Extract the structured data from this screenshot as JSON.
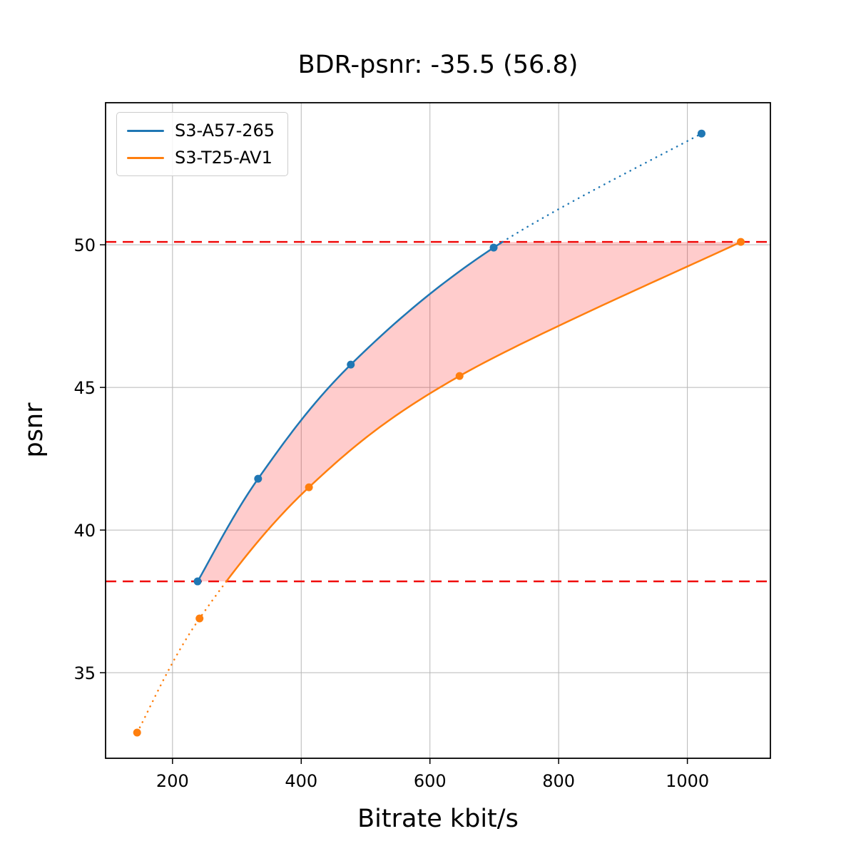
{
  "title": "BDR-psnr: -35.5 (56.8)",
  "xlabel": "Bitrate kbit/s",
  "ylabel": "psnr",
  "legend": {
    "entries": [
      {
        "label": "S3-A57-265",
        "color": "#1f77b4"
      },
      {
        "label": "S3-T25-AV1",
        "color": "#ff7f0e"
      }
    ]
  },
  "chart_data": {
    "type": "line",
    "title": "BDR-psnr: -35.5 (56.8)",
    "xlabel": "Bitrate kbit/s",
    "ylabel": "psnr",
    "xlim": [
      96,
      1129
    ],
    "ylim": [
      32.0,
      54.98
    ],
    "x_ticks": [
      "200",
      "400",
      "600",
      "800",
      "1000"
    ],
    "x_tick_values": [
      200,
      400,
      600,
      800,
      1000
    ],
    "y_ticks": [
      "35",
      "40",
      "45",
      "50"
    ],
    "y_tick_values": [
      35,
      40,
      45,
      50
    ],
    "grid": true,
    "legend_position": "upper left",
    "series": [
      {
        "name": "S3-A57-265",
        "color": "#1f77b4",
        "x": [
          239,
          333,
          477,
          699,
          1022
        ],
        "y": [
          38.2,
          41.8,
          45.8,
          49.9,
          53.9
        ]
      },
      {
        "name": "S3-T25-AV1",
        "color": "#ff7f0e",
        "x": [
          145,
          242,
          412,
          646,
          1083
        ],
        "y": [
          32.9,
          36.9,
          41.5,
          45.4,
          50.1
        ]
      }
    ],
    "overlap_bounds": {
      "y_low": 38.2,
      "y_high": 50.1,
      "line_color": "#f00c0c",
      "line_style": "dashed"
    },
    "fill_between_color": "rgba(255,0,0,0.2)",
    "grid_color": "#b7b7b7"
  }
}
